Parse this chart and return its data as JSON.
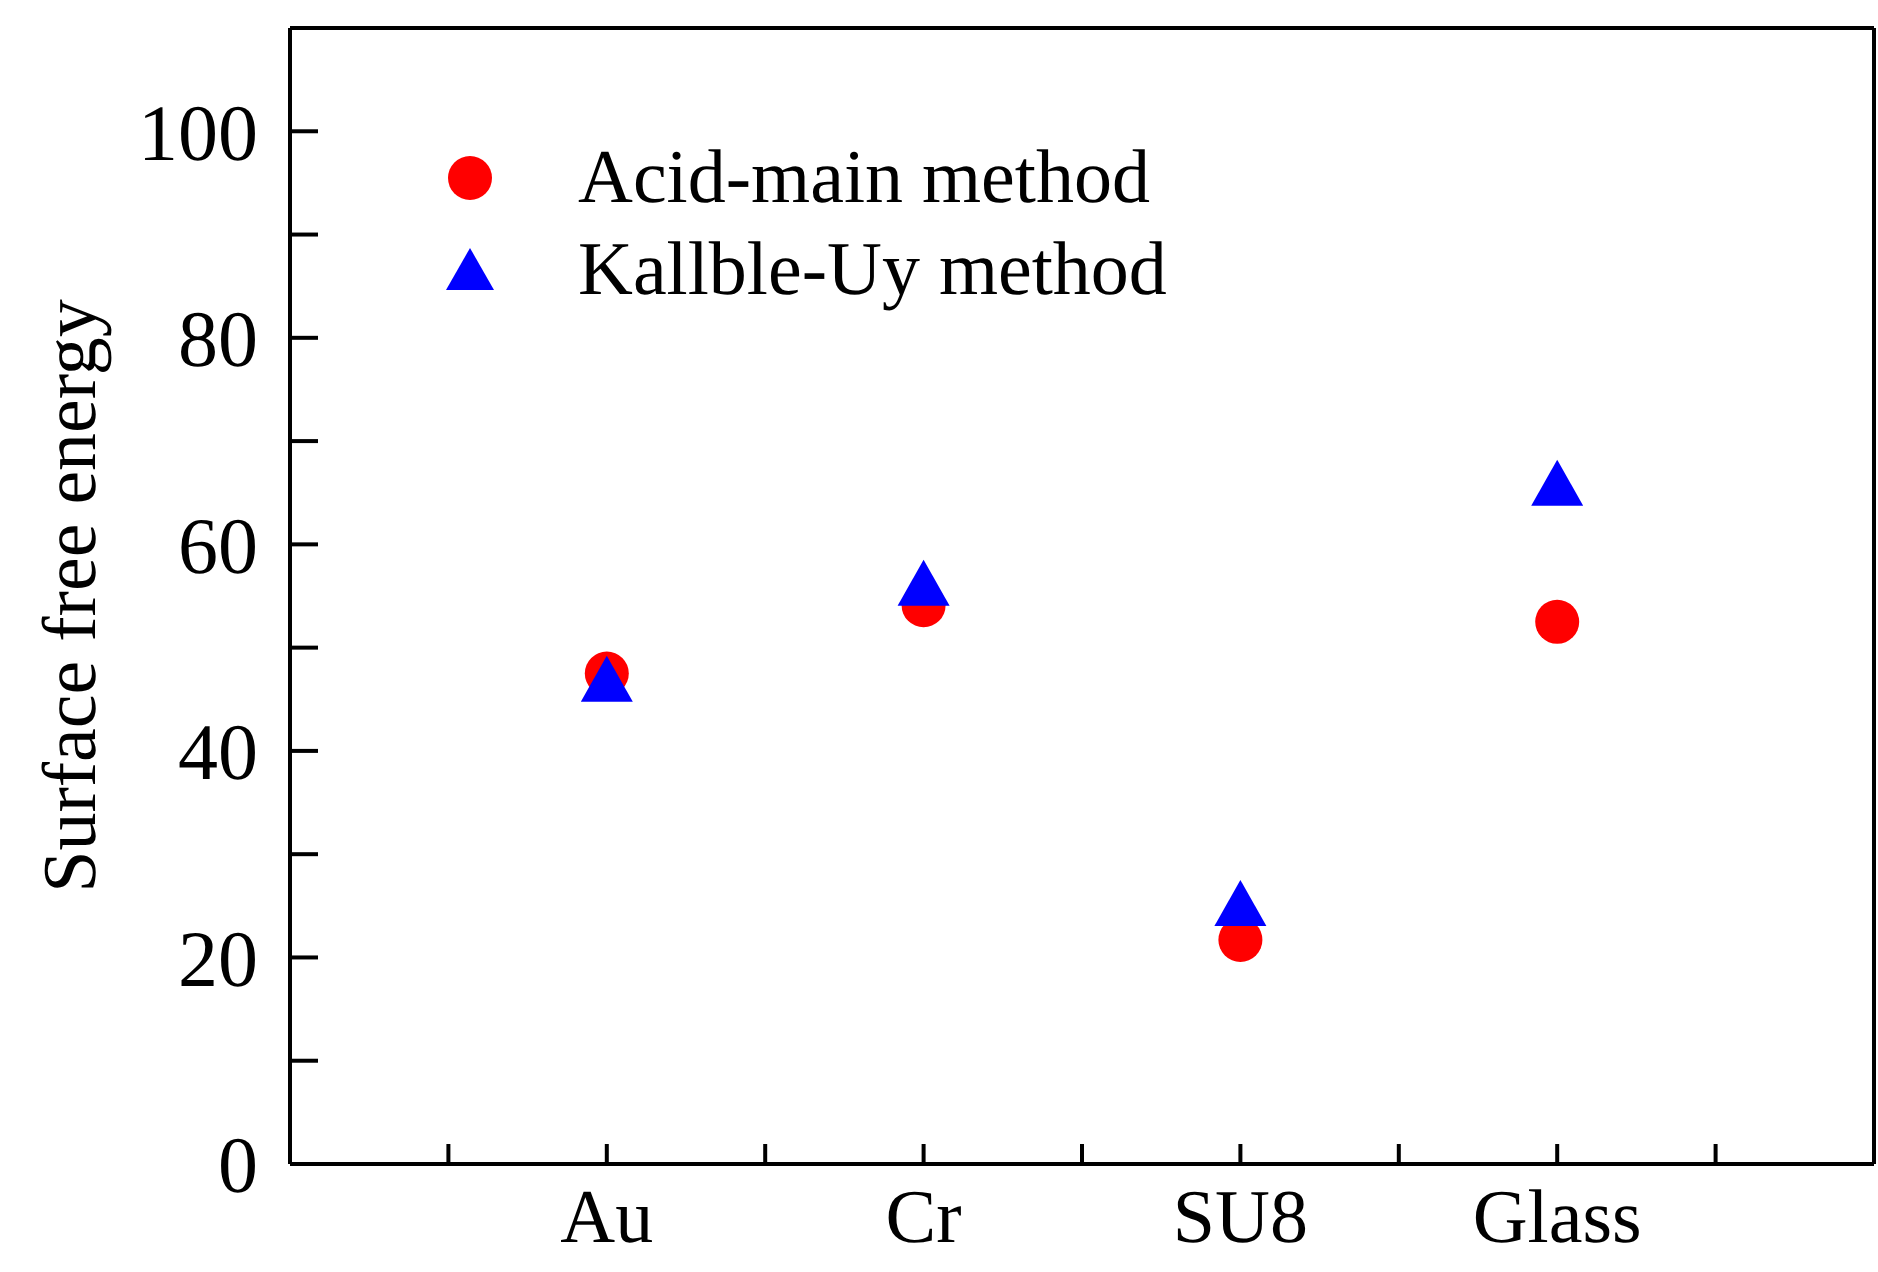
{
  "chart_data": {
    "type": "scatter",
    "ylabel": "Surface free energy",
    "categories": [
      "Au",
      "Cr",
      "SU8",
      "Glass"
    ],
    "series": [
      {
        "name": "Acid-main method",
        "color": "#ff0000",
        "marker": "circle",
        "values": [
          47.5,
          54.1,
          21.7,
          52.5
        ]
      },
      {
        "name": "Kallble-Uy method",
        "color": "#0000ff",
        "marker": "triangle",
        "values": [
          46.3,
          55.6,
          24.6,
          65.3
        ]
      }
    ],
    "ylim": [
      0,
      110
    ],
    "yticks": [
      0,
      {
        "value": 10,
        "label": null
      },
      20,
      {
        "value": 30,
        "label": null
      },
      40,
      {
        "value": 50,
        "label": null
      },
      60,
      {
        "value": 70,
        "label": null
      },
      80,
      {
        "value": 90,
        "label": null
      },
      100
    ],
    "legend": "top left",
    "grid": false
  }
}
